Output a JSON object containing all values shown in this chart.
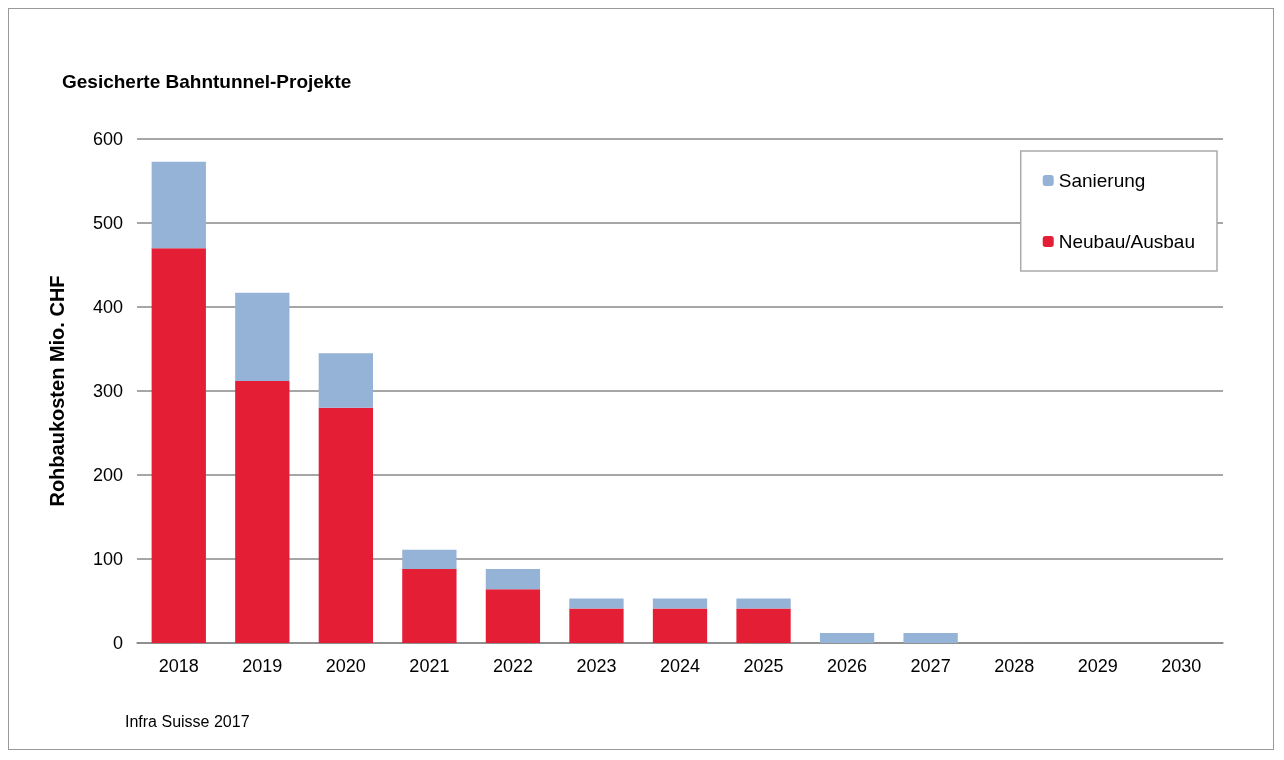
{
  "chart_data": {
    "type": "bar",
    "title": "Gesicherte Bahntunnel-Projekte",
    "ylabel": "Rohbaukosten Mio. CHF",
    "annotations": [
      "Infra Suisse 2017"
    ],
    "categories": [
      "2018",
      "2019",
      "2020",
      "2021",
      "2022",
      "2023",
      "2024",
      "2025",
      "2026",
      "2027",
      "2028",
      "2029",
      "2030"
    ],
    "stacked": true,
    "series": [
      {
        "name": "Neubau/Ausbau",
        "color": "#e31e35",
        "values": [
          470,
          312,
          280,
          88,
          64,
          41,
          41,
          41,
          0,
          0,
          0,
          0,
          0
        ]
      },
      {
        "name": "Sanierung",
        "color": "#95b3d7",
        "values": [
          103,
          105,
          65,
          23,
          24,
          12,
          12,
          12,
          12,
          12,
          0,
          0,
          0
        ]
      }
    ],
    "ylim": [
      0,
      600
    ],
    "yticks": [
      0,
      100,
      200,
      300,
      400,
      500,
      600
    ],
    "grid": "y",
    "legend": "top right"
  }
}
